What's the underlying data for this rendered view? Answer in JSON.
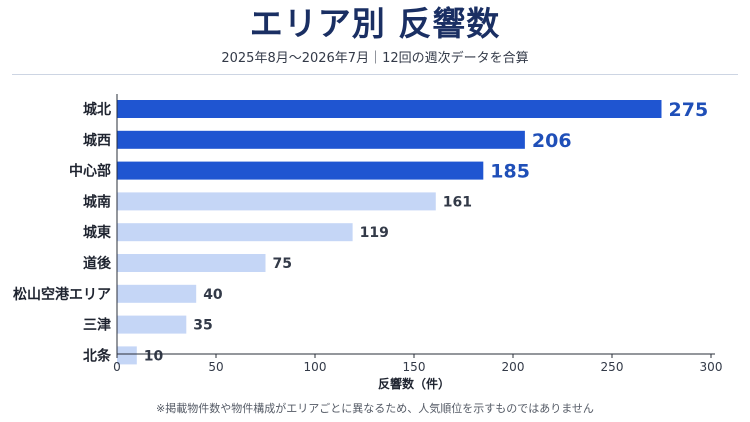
{
  "header": {
    "title": "エリア別 反響数",
    "subtitle": "2025年8月～2026年7月｜12回の週次データを合算"
  },
  "footnote": "※掲載物件数や物件構成がエリアごとに異なるため、人気順位を示すものではありません",
  "colors": {
    "highlight": "#1f55d1",
    "normal": "#c5d6f6",
    "highlight_label": "#1f4fb8",
    "normal_label": "#333a48"
  },
  "chart_data": {
    "type": "bar",
    "orientation": "horizontal",
    "categories": [
      "城北",
      "城西",
      "中心部",
      "城南",
      "城東",
      "道後",
      "松山空港エリア",
      "三津",
      "北条"
    ],
    "values": [
      275,
      206,
      185,
      161,
      119,
      75,
      40,
      35,
      10
    ],
    "highlighted": [
      true,
      true,
      true,
      false,
      false,
      false,
      false,
      false,
      false
    ],
    "xlabel": "反響数（件）",
    "ylabel": "",
    "xlim": [
      0,
      300
    ],
    "xticks": [
      0,
      50,
      100,
      150,
      200,
      250,
      300
    ],
    "grid": false
  }
}
